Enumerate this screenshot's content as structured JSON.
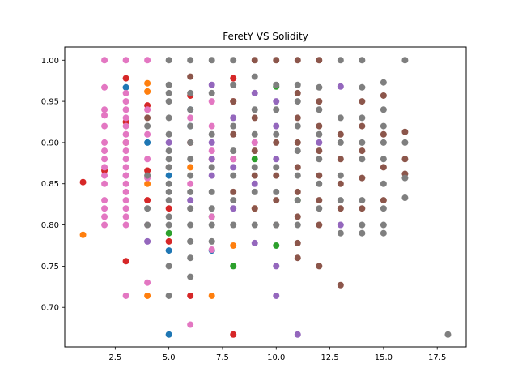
{
  "chart_data": {
    "type": "scatter",
    "title": "FeretY VS Solidity",
    "xlabel": "",
    "ylabel": "",
    "xlim": [
      0.15,
      18.85
    ],
    "ylim": [
      0.652,
      1.016
    ],
    "xticks": [
      2.5,
      5.0,
      7.5,
      10.0,
      12.5,
      15.0,
      17.5
    ],
    "xtick_labels": [
      "2.5",
      "5.0",
      "7.5",
      "10.0",
      "12.5",
      "15.0",
      "17.5"
    ],
    "yticks": [
      0.7,
      0.75,
      0.8,
      0.85,
      0.9,
      0.95,
      1.0
    ],
    "ytick_labels": [
      "0.70",
      "0.75",
      "0.80",
      "0.85",
      "0.90",
      "0.95",
      "1.00"
    ],
    "grid": false,
    "legend": "none",
    "series": [
      {
        "color": "#1f77b4",
        "points": [
          [
            3,
            0.967
          ],
          [
            5,
            0.667
          ],
          [
            5,
            0.769
          ],
          [
            6,
            0.94
          ],
          [
            6,
            0.92
          ],
          [
            7,
            0.769
          ],
          [
            4,
            0.9
          ],
          [
            5,
            0.86
          ]
        ]
      },
      {
        "color": "#ff7f0e",
        "points": [
          [
            1,
            0.788
          ],
          [
            4,
            0.714
          ],
          [
            4,
            0.972
          ],
          [
            4,
            0.962
          ],
          [
            7,
            0.714
          ],
          [
            8,
            0.775
          ],
          [
            4,
            0.85
          ],
          [
            6,
            0.87
          ],
          [
            9,
            0.82
          ]
        ]
      },
      {
        "color": "#2ca02c",
        "points": [
          [
            8,
            0.75
          ],
          [
            10,
            0.968
          ],
          [
            10,
            0.775
          ],
          [
            5,
            0.79
          ],
          [
            7,
            0.81
          ],
          [
            9,
            0.88
          ],
          [
            11,
            0.83
          ]
        ]
      },
      {
        "color": "#d62728",
        "points": [
          [
            1,
            0.852
          ],
          [
            3,
            0.978
          ],
          [
            3,
            0.756
          ],
          [
            4,
            0.945
          ],
          [
            4,
            0.866
          ],
          [
            5,
            0.78
          ],
          [
            6,
            0.714
          ],
          [
            6,
            0.957
          ],
          [
            6,
            0.9
          ],
          [
            8,
            0.667
          ],
          [
            8,
            0.978
          ],
          [
            8,
            0.95
          ],
          [
            2,
            0.866
          ],
          [
            3,
            0.9
          ],
          [
            3,
            0.925
          ],
          [
            4,
            0.83
          ],
          [
            5,
            0.82
          ],
          [
            7,
            0.88
          ]
        ]
      },
      {
        "color": "#9467bd",
        "points": [
          [
            7,
            0.97
          ],
          [
            7,
            0.9
          ],
          [
            7,
            0.88
          ],
          [
            7,
            0.86
          ],
          [
            8,
            0.93
          ],
          [
            8,
            0.87
          ],
          [
            8,
            0.82
          ],
          [
            9,
            0.778
          ],
          [
            9,
            0.96
          ],
          [
            9,
            0.9
          ],
          [
            9,
            0.85
          ],
          [
            10,
            0.75
          ],
          [
            10,
            0.714
          ],
          [
            10,
            0.95
          ],
          [
            10,
            0.92
          ],
          [
            10,
            0.88
          ],
          [
            11,
            0.667
          ],
          [
            13,
            0.968
          ],
          [
            13,
            0.8
          ],
          [
            4,
            0.78
          ],
          [
            5,
            0.9
          ],
          [
            6,
            0.83
          ],
          [
            3,
            0.86
          ],
          [
            12,
            0.9
          ]
        ]
      },
      {
        "color": "#8c564b",
        "points": [
          [
            6,
            0.98
          ],
          [
            8,
            0.95
          ],
          [
            8,
            0.91
          ],
          [
            8,
            0.88
          ],
          [
            8,
            0.84
          ],
          [
            9,
            0.93
          ],
          [
            9,
            0.89
          ],
          [
            9,
            0.86
          ],
          [
            9,
            0.82
          ],
          [
            10,
            0.9
          ],
          [
            10,
            0.86
          ],
          [
            10,
            0.83
          ],
          [
            10,
            0.8
          ],
          [
            11,
            1.0
          ],
          [
            11,
            0.96
          ],
          [
            11,
            0.93
          ],
          [
            11,
            0.9
          ],
          [
            11,
            0.87
          ],
          [
            11,
            0.84
          ],
          [
            11,
            0.81
          ],
          [
            11,
            0.778
          ],
          [
            11,
            0.76
          ],
          [
            12,
            1.0
          ],
          [
            12,
            0.95
          ],
          [
            12,
            0.92
          ],
          [
            12,
            0.89
          ],
          [
            12,
            0.86
          ],
          [
            12,
            0.83
          ],
          [
            12,
            0.8
          ],
          [
            12,
            0.75
          ],
          [
            13,
            0.91
          ],
          [
            13,
            0.88
          ],
          [
            13,
            0.85
          ],
          [
            13,
            0.82
          ],
          [
            13,
            0.727
          ],
          [
            14,
            0.95
          ],
          [
            14,
            0.92
          ],
          [
            14,
            0.89
          ],
          [
            14,
            0.857
          ],
          [
            14,
            0.82
          ],
          [
            15,
            0.957
          ],
          [
            15,
            0.91
          ],
          [
            15,
            0.87
          ],
          [
            15,
            0.83
          ],
          [
            16,
            0.913
          ],
          [
            16,
            0.88
          ],
          [
            16,
            0.862
          ],
          [
            10,
            1.0
          ],
          [
            9,
            1.0
          ],
          [
            4,
            0.93
          ],
          [
            5,
            0.87
          ]
        ]
      },
      {
        "color": "#e377c2",
        "points": [
          [
            2,
            1.0
          ],
          [
            2,
            0.967
          ],
          [
            2,
            0.94
          ],
          [
            2,
            0.933
          ],
          [
            2,
            0.92
          ],
          [
            2,
            0.9
          ],
          [
            2,
            0.89
          ],
          [
            2,
            0.88
          ],
          [
            2,
            0.87
          ],
          [
            2,
            0.86
          ],
          [
            2,
            0.85
          ],
          [
            2,
            0.83
          ],
          [
            2,
            0.82
          ],
          [
            2,
            0.81
          ],
          [
            2,
            0.8
          ],
          [
            3,
            1.0
          ],
          [
            3,
            0.96
          ],
          [
            3,
            0.95
          ],
          [
            3,
            0.94
          ],
          [
            3,
            0.93
          ],
          [
            3,
            0.92
          ],
          [
            3,
            0.91
          ],
          [
            3,
            0.9
          ],
          [
            3,
            0.89
          ],
          [
            3,
            0.88
          ],
          [
            3,
            0.87
          ],
          [
            3,
            0.86
          ],
          [
            3,
            0.85
          ],
          [
            3,
            0.84
          ],
          [
            3,
            0.83
          ],
          [
            3,
            0.82
          ],
          [
            3,
            0.81
          ],
          [
            3,
            0.8
          ],
          [
            3,
            0.714
          ],
          [
            4,
            1.0
          ],
          [
            4,
            0.94
          ],
          [
            4,
            0.91
          ],
          [
            4,
            0.88
          ],
          [
            4,
            0.857
          ],
          [
            4,
            0.8
          ],
          [
            4,
            0.73
          ],
          [
            6,
            0.679
          ],
          [
            6,
            0.85
          ],
          [
            7,
            0.95
          ],
          [
            7,
            0.92
          ],
          [
            7,
            0.89
          ],
          [
            7,
            0.81
          ],
          [
            7,
            0.77
          ],
          [
            8,
            0.88
          ],
          [
            9,
            0.9
          ],
          [
            6,
            0.93
          ]
        ]
      },
      {
        "color": "#7f7f7f",
        "points": [
          [
            4,
            0.8
          ],
          [
            4,
            0.82
          ],
          [
            4,
            0.86
          ],
          [
            4,
            0.92
          ],
          [
            5,
            1.0
          ],
          [
            5,
            0.97
          ],
          [
            5,
            0.95
          ],
          [
            5,
            0.93
          ],
          [
            5,
            0.91
          ],
          [
            5,
            0.89
          ],
          [
            5,
            0.87
          ],
          [
            5,
            0.85
          ],
          [
            5,
            0.83
          ],
          [
            5,
            0.81
          ],
          [
            5,
            0.8
          ],
          [
            5,
            0.714
          ],
          [
            5,
            0.75
          ],
          [
            5,
            0.96
          ],
          [
            5,
            0.88
          ],
          [
            5,
            0.84
          ],
          [
            6,
            1.0
          ],
          [
            6,
            0.96
          ],
          [
            6,
            0.94
          ],
          [
            6,
            0.92
          ],
          [
            6,
            0.9
          ],
          [
            6,
            0.88
          ],
          [
            6,
            0.86
          ],
          [
            6,
            0.84
          ],
          [
            6,
            0.82
          ],
          [
            6,
            0.8
          ],
          [
            6,
            0.78
          ],
          [
            6,
            0.76
          ],
          [
            6,
            0.737
          ],
          [
            7,
            1.0
          ],
          [
            7,
            0.96
          ],
          [
            7,
            0.91
          ],
          [
            7,
            0.87
          ],
          [
            7,
            0.84
          ],
          [
            7,
            0.82
          ],
          [
            7,
            0.8
          ],
          [
            7,
            0.78
          ],
          [
            8,
            1.0
          ],
          [
            8,
            0.97
          ],
          [
            8,
            0.92
          ],
          [
            8,
            0.89
          ],
          [
            8,
            0.86
          ],
          [
            8,
            0.83
          ],
          [
            8,
            0.8
          ],
          [
            9,
            0.98
          ],
          [
            9,
            0.94
          ],
          [
            9,
            0.91
          ],
          [
            9,
            0.87
          ],
          [
            9,
            0.84
          ],
          [
            9,
            0.8
          ],
          [
            10,
            0.97
          ],
          [
            10,
            0.94
          ],
          [
            10,
            0.91
          ],
          [
            10,
            0.87
          ],
          [
            10,
            0.84
          ],
          [
            10,
            0.8
          ],
          [
            11,
            0.97
          ],
          [
            11,
            0.95
          ],
          [
            11,
            0.92
          ],
          [
            11,
            0.89
          ],
          [
            11,
            0.86
          ],
          [
            11,
            0.83
          ],
          [
            11,
            0.8
          ],
          [
            12,
            0.967
          ],
          [
            12,
            0.94
          ],
          [
            12,
            0.91
          ],
          [
            12,
            0.88
          ],
          [
            12,
            0.85
          ],
          [
            12,
            0.82
          ],
          [
            13,
            1.0
          ],
          [
            13,
            0.93
          ],
          [
            13,
            0.9
          ],
          [
            13,
            0.86
          ],
          [
            13,
            0.83
          ],
          [
            13,
            0.79
          ],
          [
            14,
            1.0
          ],
          [
            14,
            0.967
          ],
          [
            14,
            0.93
          ],
          [
            14,
            0.9
          ],
          [
            14,
            0.88
          ],
          [
            14,
            0.83
          ],
          [
            14,
            0.8
          ],
          [
            14,
            0.79
          ],
          [
            15,
            0.973
          ],
          [
            15,
            0.94
          ],
          [
            15,
            0.92
          ],
          [
            15,
            0.9
          ],
          [
            15,
            0.88
          ],
          [
            15,
            0.85
          ],
          [
            15,
            0.82
          ],
          [
            15,
            0.8
          ],
          [
            15,
            0.79
          ],
          [
            16,
            1.0
          ],
          [
            16,
            0.9
          ],
          [
            16,
            0.857
          ],
          [
            16,
            0.833
          ],
          [
            18,
            0.667
          ]
        ]
      }
    ]
  }
}
